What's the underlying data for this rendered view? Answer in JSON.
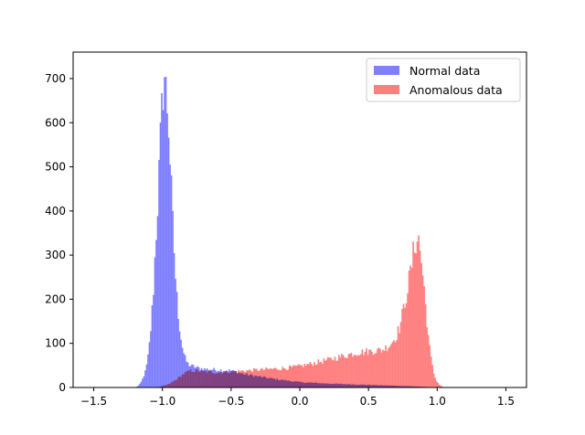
{
  "chart_data": {
    "type": "histogram",
    "title": "",
    "xlabel": "",
    "ylabel": "",
    "xlim": [
      -1.65,
      1.65
    ],
    "ylim": [
      0,
      760
    ],
    "xticks": [
      -1.5,
      -1.0,
      -0.5,
      0.0,
      0.5,
      1.0,
      1.5
    ],
    "xtick_labels": [
      "−1.5",
      "−1.0",
      "−0.5",
      "0.0",
      "0.5",
      "1.0",
      "1.5"
    ],
    "yticks": [
      0,
      100,
      200,
      300,
      400,
      500,
      600,
      700
    ],
    "ytick_labels": [
      "0",
      "100",
      "200",
      "300",
      "400",
      "500",
      "600",
      "700"
    ],
    "grid": false,
    "legend_position": "top-right",
    "bins": {
      "start": -1.5,
      "end": 1.5,
      "count": 300
    },
    "series": [
      {
        "name": "Normal data",
        "color": "#7f7fff",
        "points": [
          [
            -1.2,
            0
          ],
          [
            -1.17,
            5
          ],
          [
            -1.15,
            15
          ],
          [
            -1.12,
            40
          ],
          [
            -1.1,
            80
          ],
          [
            -1.08,
            150
          ],
          [
            -1.06,
            250
          ],
          [
            -1.05,
            330
          ],
          [
            -1.04,
            380
          ],
          [
            -1.03,
            450
          ],
          [
            -1.02,
            520
          ],
          [
            -1.01,
            590
          ],
          [
            -1.0,
            650
          ],
          [
            -0.99,
            725
          ],
          [
            -0.98,
            690
          ],
          [
            -0.97,
            650
          ],
          [
            -0.96,
            630
          ],
          [
            -0.95,
            560
          ],
          [
            -0.94,
            480
          ],
          [
            -0.93,
            400
          ],
          [
            -0.92,
            340
          ],
          [
            -0.91,
            280
          ],
          [
            -0.9,
            220
          ],
          [
            -0.88,
            150
          ],
          [
            -0.86,
            100
          ],
          [
            -0.84,
            70
          ],
          [
            -0.82,
            55
          ],
          [
            -0.8,
            50
          ],
          [
            -0.75,
            45
          ],
          [
            -0.7,
            42
          ],
          [
            -0.6,
            40
          ],
          [
            -0.5,
            38
          ],
          [
            -0.4,
            30
          ],
          [
            -0.3,
            25
          ],
          [
            -0.2,
            20
          ],
          [
            -0.1,
            16
          ],
          [
            0.0,
            12
          ],
          [
            0.2,
            9
          ],
          [
            0.4,
            7
          ],
          [
            0.6,
            5
          ],
          [
            0.8,
            3
          ],
          [
            0.9,
            1.5
          ],
          [
            1.0,
            0
          ]
        ]
      },
      {
        "name": "Anomalous data",
        "color": "#ff7f7f",
        "points": [
          [
            -1.05,
            0
          ],
          [
            -1.0,
            3
          ],
          [
            -0.95,
            8
          ],
          [
            -0.9,
            18
          ],
          [
            -0.85,
            30
          ],
          [
            -0.8,
            38
          ],
          [
            -0.75,
            38
          ],
          [
            -0.7,
            36
          ],
          [
            -0.6,
            34
          ],
          [
            -0.5,
            36
          ],
          [
            -0.4,
            38
          ],
          [
            -0.3,
            40
          ],
          [
            -0.2,
            42
          ],
          [
            -0.1,
            44
          ],
          [
            0.0,
            48
          ],
          [
            0.1,
            55
          ],
          [
            0.2,
            62
          ],
          [
            0.3,
            70
          ],
          [
            0.4,
            78
          ],
          [
            0.5,
            82
          ],
          [
            0.6,
            85
          ],
          [
            0.65,
            95
          ],
          [
            0.7,
            115
          ],
          [
            0.73,
            140
          ],
          [
            0.76,
            185
          ],
          [
            0.78,
            220
          ],
          [
            0.8,
            250
          ],
          [
            0.82,
            290
          ],
          [
            0.84,
            330
          ],
          [
            0.86,
            345
          ],
          [
            0.88,
            300
          ],
          [
            0.9,
            240
          ],
          [
            0.92,
            170
          ],
          [
            0.94,
            100
          ],
          [
            0.96,
            55
          ],
          [
            0.98,
            25
          ],
          [
            1.0,
            12
          ],
          [
            1.02,
            5
          ],
          [
            1.05,
            0
          ]
        ]
      }
    ]
  }
}
